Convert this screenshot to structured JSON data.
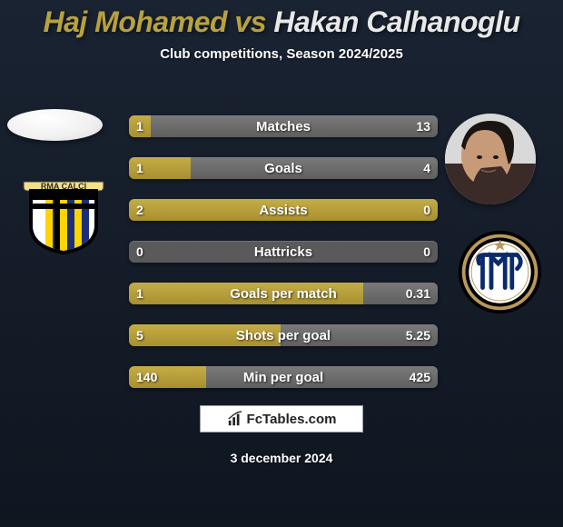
{
  "title": {
    "player1": "Haj Mohamed",
    "vs": "vs",
    "player2": "Hakan Calhanoglu"
  },
  "subtitle": "Club competitions, Season 2024/2025",
  "stats": [
    {
      "label": "Matches",
      "left_val": "1",
      "right_val": "13",
      "left_pct": 7,
      "right_pct": 93
    },
    {
      "label": "Goals",
      "left_val": "1",
      "right_val": "4",
      "left_pct": 20,
      "right_pct": 80
    },
    {
      "label": "Assists",
      "left_val": "2",
      "right_val": "0",
      "left_pct": 100,
      "right_pct": 0
    },
    {
      "label": "Hattricks",
      "left_val": "0",
      "right_val": "0",
      "left_pct": 0,
      "right_pct": 0
    },
    {
      "label": "Goals per match",
      "left_val": "1",
      "right_val": "0.31",
      "left_pct": 76,
      "right_pct": 24
    },
    {
      "label": "Shots per goal",
      "left_val": "5",
      "right_val": "5.25",
      "left_pct": 49,
      "right_pct": 51
    },
    {
      "label": "Min per goal",
      "left_val": "140",
      "right_val": "425",
      "left_pct": 25,
      "right_pct": 75
    }
  ],
  "watermark": "FcTables.com",
  "date": "3 december 2024",
  "colors": {
    "p1_color": "#b8a23e",
    "p2_color": "#e8e8e8",
    "bar_left": "#b8a23e",
    "bar_right": "#6c6c6c",
    "bar_empty": "#5a5a5a",
    "bg_top": "#1a2332",
    "bg_bottom": "#0f1620"
  },
  "clubs": {
    "left": {
      "shield_border": "#000000",
      "shield_fill": "#ffffff",
      "stripes": [
        "#ffd400",
        "#1b2f7a"
      ],
      "cross": "#000000",
      "banner_text": "RMA CALCIO"
    },
    "right": {
      "name": "inter-milan",
      "ring_outer": "#000000",
      "ring_gold": "#b9995a",
      "ring_inner_bg": "#ffffff",
      "letters_color": "#0a2a6b",
      "star_color": "#b9995a"
    }
  },
  "typography": {
    "title_fontsize": 32,
    "subtitle_fontsize": 15,
    "bar_label_fontsize": 15,
    "bar_value_fontsize": 14,
    "date_fontsize": 14
  }
}
